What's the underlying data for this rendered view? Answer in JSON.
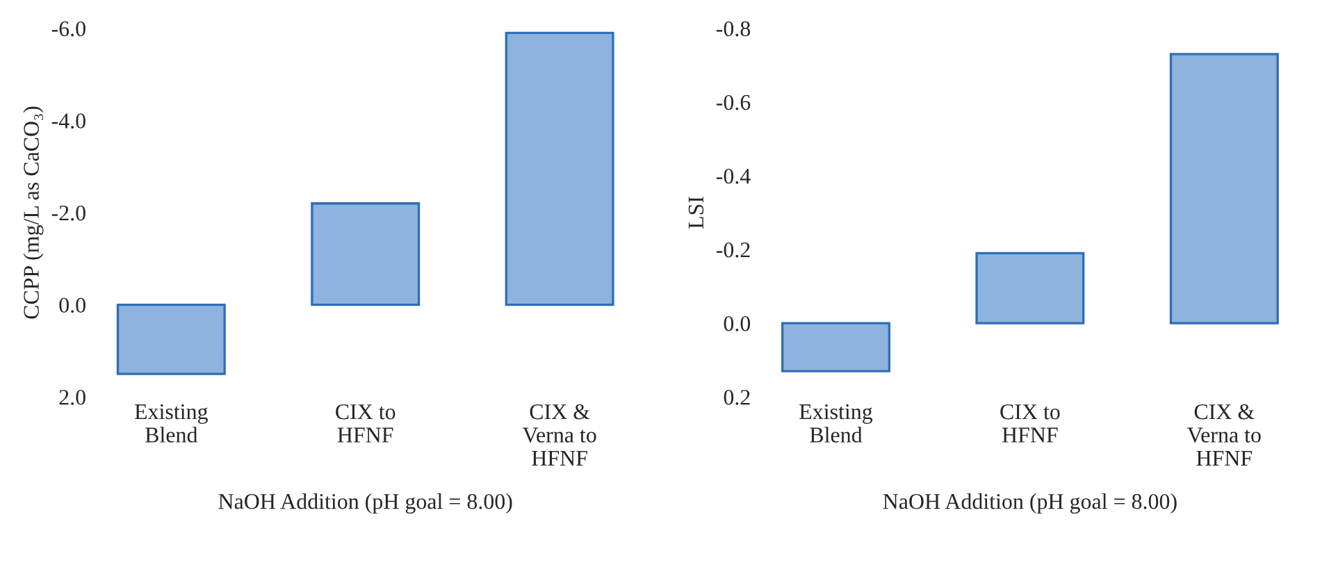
{
  "chart_data": [
    {
      "type": "bar",
      "categories": [
        "Existing\nBlend",
        "CIX to\nHFNF",
        "CIX &\nVerna to\nHFNF"
      ],
      "values": [
        1.5,
        -2.2,
        -5.9
      ],
      "color": "#8db3de",
      "xlabel": "NaOH Addition (pH goal = 8.00)",
      "ylabel": "CCPP (mg/L as CaCO₃)",
      "ylim": [
        2.0,
        -6.0
      ],
      "yticks": [
        {
          "value": 2.0,
          "label": "2.0"
        },
        {
          "value": 0.0,
          "label": "0.0"
        },
        {
          "value": -2.0,
          "label": "-2.0"
        },
        {
          "value": -4.0,
          "label": "-4.0"
        },
        {
          "value": -6.0,
          "label": "-6.0"
        }
      ],
      "grid": false
    },
    {
      "type": "bar",
      "categories": [
        "Existing\nBlend",
        "CIX to\nHFNF",
        "CIX &\nVerna to\nHFNF"
      ],
      "values": [
        0.13,
        -0.19,
        -0.73
      ],
      "color": "#8db3de",
      "xlabel": "NaOH Addition (pH goal = 8.00)",
      "ylabel": "LSI",
      "ylim": [
        0.2,
        -0.8
      ],
      "yticks": [
        {
          "value": 0.2,
          "label": "0.2"
        },
        {
          "value": 0.0,
          "label": "0.0"
        },
        {
          "value": -0.2,
          "label": "-0.2"
        },
        {
          "value": -0.4,
          "label": "-0.4"
        },
        {
          "value": -0.6,
          "label": "-0.6"
        },
        {
          "value": -0.8,
          "label": "-0.8"
        }
      ],
      "grid": false
    }
  ]
}
